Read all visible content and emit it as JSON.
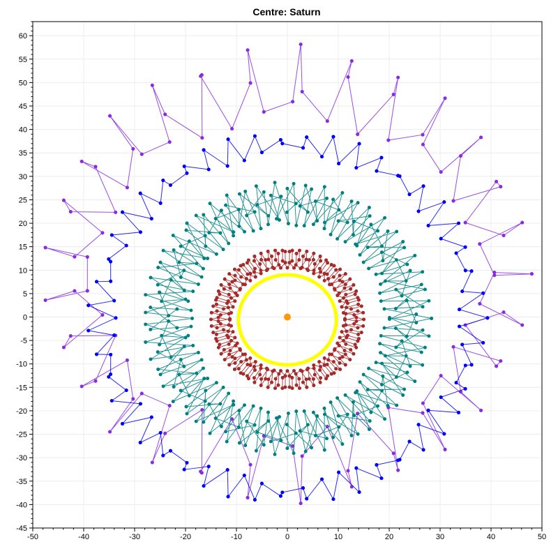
{
  "chart_data": {
    "type": "line",
    "title": "Centre: Saturn",
    "xlabel": "",
    "ylabel": "",
    "xlim": [
      -50,
      50
    ],
    "ylim": [
      -45,
      63
    ],
    "x_ticks": [
      -50,
      -40,
      -30,
      -20,
      -10,
      0,
      10,
      20,
      30,
      40,
      50
    ],
    "y_ticks": [
      -45,
      -40,
      -35,
      -30,
      -25,
      -20,
      -15,
      -10,
      -5,
      0,
      5,
      10,
      15,
      20,
      25,
      30,
      35,
      40,
      45,
      50,
      55,
      60
    ],
    "grid": true,
    "legend": "none",
    "centre_marker": {
      "x": 0,
      "y": 0,
      "color": "#ff9900"
    },
    "series": [
      {
        "color": "#8a2be2",
        "center": [
          0,
          9.2
        ],
        "mean_radius": [
          42.5,
          40.6
        ],
        "epicycle_amplitude": [
          5.5,
          8.5
        ],
        "revolutions": 4,
        "lobes": 29,
        "points": 380
      },
      {
        "color": "#0000ff",
        "center": [
          0,
          -0.2
        ],
        "mean_radius": [
          36.5,
          37.2
        ],
        "epicycle_amplitude": [
          2.8,
          2.7
        ],
        "revolutions": 5,
        "lobes": 47,
        "points": 520
      },
      {
        "color": "#008080",
        "center": [
          0,
          -0.3
        ],
        "mean_radius": [
          23.5,
          24.5
        ],
        "epicycle_amplitude": [
          4.8,
          4.6
        ],
        "revolutions": 6,
        "lobes": 53,
        "points": 560
      },
      {
        "color": "#a52a2a",
        "center": [
          0,
          -0.5
        ],
        "mean_radius": [
          13.0,
          13.0
        ],
        "epicycle_amplitude": [
          2.0,
          2.0
        ],
        "revolutions": 3,
        "lobes": 62,
        "points": 900
      },
      {
        "color": "#ffff00",
        "center": [
          0,
          -0.6
        ],
        "mean_radius": [
          9.6,
          9.6
        ],
        "epicycle_amplitude": [
          0,
          0
        ],
        "revolutions": 1,
        "lobes": 0,
        "points": 160
      }
    ]
  }
}
